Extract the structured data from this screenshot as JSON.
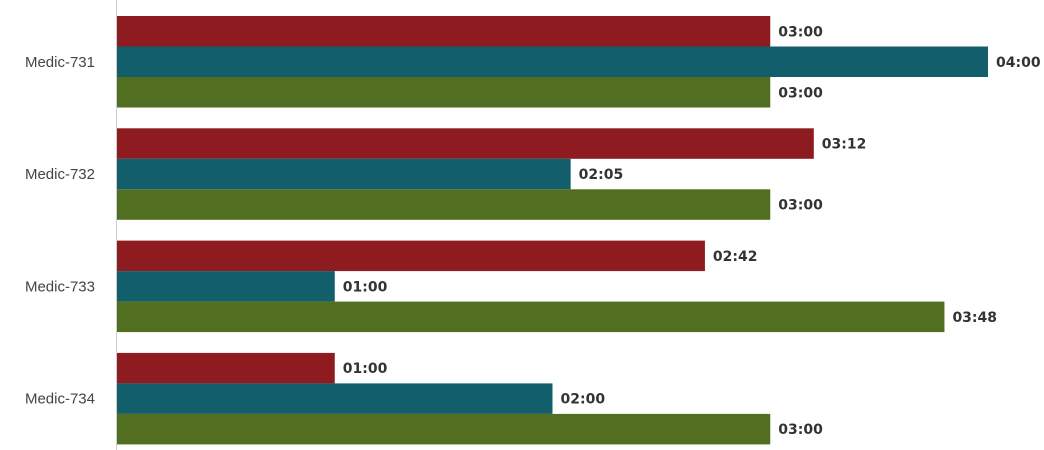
{
  "chart_data": {
    "type": "bar",
    "orientation": "horizontal",
    "value_format": "mm:ss",
    "categories": [
      "Medic-731",
      "Medic-732",
      "Medic-733",
      "Medic-734"
    ],
    "series": [
      {
        "color": "#8e1b1f",
        "values": [
          180,
          192,
          162,
          60
        ],
        "labels": [
          "03:00",
          "03:12",
          "02:42",
          "01:00"
        ]
      },
      {
        "color": "#135e6b",
        "values": [
          240,
          125,
          60,
          120
        ],
        "labels": [
          "04:00",
          "02:05",
          "01:00",
          "02:00"
        ]
      },
      {
        "color": "#526e20",
        "values": [
          180,
          180,
          228,
          180
        ],
        "labels": [
          "03:00",
          "03:00",
          "03:48",
          "03:00"
        ]
      }
    ],
    "xlim": [
      0,
      240
    ],
    "grid": false,
    "legend": "none"
  }
}
